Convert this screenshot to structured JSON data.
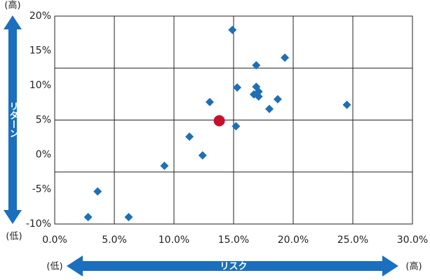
{
  "chart_data": {
    "type": "scatter",
    "x_label": "リスク",
    "y_label": "リターン",
    "annotations": {
      "y_high": "(高)",
      "y_low": "(低)",
      "x_low": "(低)",
      "x_high": "(高)"
    },
    "series": [
      {
        "color": "#1f6fb5",
        "marker": "diamond",
        "x": [
          14.9,
          19.3,
          16.9,
          15.3,
          16.9,
          17.1,
          16.7,
          17.1,
          18.7,
          13.0,
          18.0,
          24.5,
          15.2,
          11.3,
          12.4,
          9.2,
          3.6,
          2.8,
          6.2
        ],
        "values": [
          18.0,
          14.0,
          12.9,
          9.7,
          9.8,
          9.1,
          8.7,
          8.4,
          8.0,
          7.6,
          6.6,
          7.2,
          4.1,
          2.6,
          -0.1,
          -1.6,
          -5.3,
          -9.0,
          -9.0
        ]
      },
      {
        "color": "#c8102e",
        "marker": "circle",
        "x": [
          13.8
        ],
        "values": [
          4.9
        ]
      }
    ],
    "xlim": [
      0,
      30
    ],
    "ylim": [
      -10,
      20
    ],
    "xticks": [
      {
        "value": 0,
        "label": "0.0%"
      },
      {
        "value": 5,
        "label": "5.0%"
      },
      {
        "value": 10,
        "label": "10.0%"
      },
      {
        "value": 15,
        "label": "15.0%"
      },
      {
        "value": 20,
        "label": "20.0%"
      },
      {
        "value": 25,
        "label": "25.0%"
      },
      {
        "value": 30,
        "label": "30.0%"
      }
    ],
    "yticks": [
      {
        "value": 20,
        "label": "20%"
      },
      {
        "value": 15,
        "label": "15%"
      },
      {
        "value": 10,
        "label": "10%"
      },
      {
        "value": 5,
        "label": "5%"
      },
      {
        "value": 0,
        "label": "0%"
      },
      {
        "value": -5,
        "label": "-5%"
      },
      {
        "value": -10,
        "label": "-10%"
      }
    ],
    "ygrid": [
      12.5,
      5,
      -2.5
    ],
    "grid": true
  }
}
